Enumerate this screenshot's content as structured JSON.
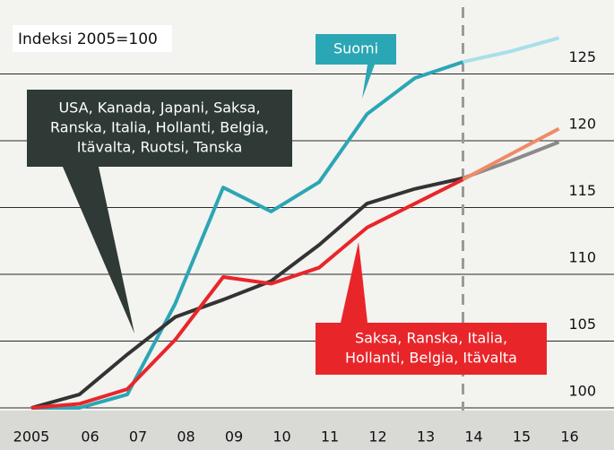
{
  "chart_data": {
    "type": "line",
    "title": "Indeksi 2005=100",
    "categories": [
      "2005",
      "06",
      "07",
      "08",
      "09",
      "10",
      "11",
      "12",
      "13",
      "14",
      "15",
      "16"
    ],
    "ylim": [
      100,
      130
    ],
    "yticks": [
      100,
      105,
      110,
      115,
      120,
      125
    ],
    "grid": true,
    "series": [
      {
        "name": "Suomi",
        "color": "#2ba6b4",
        "values": [
          100,
          100,
          101,
          107.8,
          116.5,
          114.7,
          116.9,
          122,
          124.7,
          125.9,
          null,
          null
        ]
      },
      {
        "color": "#a9dfe8",
        "values": [
          null,
          null,
          null,
          null,
          null,
          null,
          null,
          null,
          null,
          125.9,
          126.7,
          127.7
        ]
      },
      {
        "name": "USA, Kanada, Japani, Saksa, Ranska, Italia, Hollanti, Belgia, Itävalta, Ruotsi, Tanska",
        "color": "#333333",
        "values": [
          100,
          101,
          104,
          106.8,
          108.1,
          109.5,
          112.2,
          115.3,
          116.4,
          117.2,
          null,
          null
        ]
      },
      {
        "color": "#8a8a8a",
        "values": [
          null,
          null,
          null,
          null,
          null,
          null,
          null,
          null,
          null,
          117.2,
          118.5,
          119.9
        ]
      },
      {
        "name": "Saksa, Ranska, Italia, Hollanti, Belgia, Itävalta",
        "color": "#e8262a",
        "values": [
          100,
          100.3,
          101.4,
          105.1,
          109.8,
          109.3,
          110.5,
          113.5,
          115.3,
          117.1,
          null,
          null
        ]
      },
      {
        "color": "#ef8a68",
        "values": [
          null,
          null,
          null,
          null,
          null,
          null,
          null,
          null,
          null,
          117.1,
          119,
          120.9
        ]
      }
    ],
    "annotations": [
      {
        "lines": [
          "Suomi"
        ],
        "color": "#2ba6b4"
      },
      {
        "lines": [
          "USA, Kanada, Japani, Saksa,",
          "Ranska, Italia, Hollanti, Belgia,",
          "Itävalta, Ruotsi, Tanska"
        ],
        "color": "#2f3a36"
      },
      {
        "lines": [
          "Saksa, Ranska, Italia,",
          "Hollanti, Belgia, Itävalta"
        ],
        "color": "#e8262a"
      }
    ]
  }
}
